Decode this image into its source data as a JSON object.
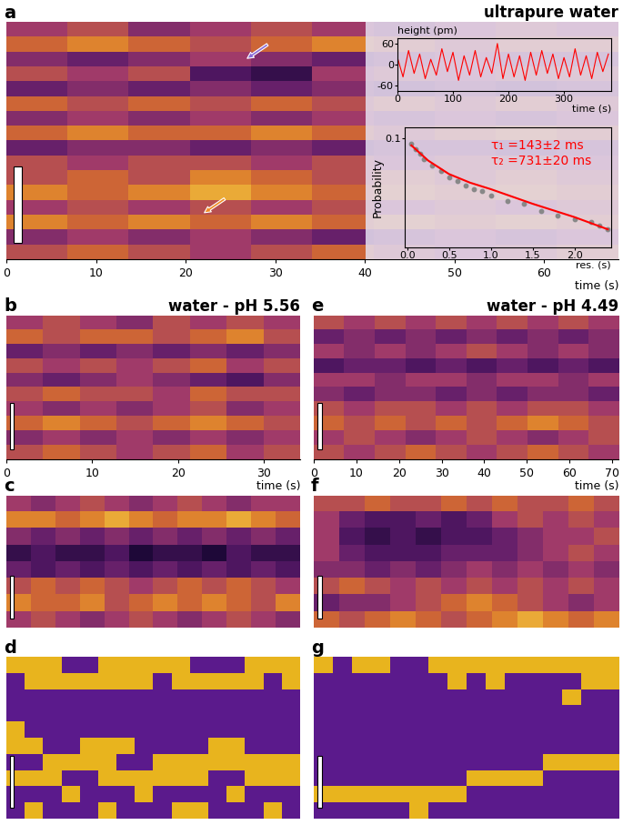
{
  "chart_data": [
    {
      "type": "heatmap",
      "panel": "a",
      "title": "ultrapure water",
      "x_label": "time (s)",
      "xlim": [
        0,
        68.3
      ],
      "xticks": [
        0,
        10,
        20,
        30,
        40,
        50,
        60
      ],
      "tick_labels": "x",
      "colors": [
        "#1e0838",
        "#5a1a6a",
        "#a03a6a",
        "#d8702a",
        "#f6d040"
      ],
      "color_range": [
        0,
        1
      ],
      "cells": [
        [
          0.5,
          0.6,
          0.4,
          0.5,
          0.6,
          0.5,
          0.4,
          0.5,
          0.6,
          0.5
        ],
        [
          0.7,
          0.8,
          0.7,
          0.6,
          0.7,
          0.8,
          0.7,
          0.6,
          0.7,
          0.7
        ],
        [
          0.4,
          0.3,
          0.4,
          0.5,
          0.4,
          0.3,
          0.4,
          0.5,
          0.4,
          0.4
        ],
        [
          0.6,
          0.5,
          0.6,
          0.2,
          0.1,
          0.5,
          0.6,
          0.5,
          0.6,
          0.6
        ],
        [
          0.3,
          0.4,
          0.3,
          0.4,
          0.3,
          0.4,
          0.3,
          0.4,
          0.3,
          0.4
        ],
        [
          0.7,
          0.6,
          0.7,
          0.6,
          0.7,
          0.6,
          0.7,
          0.6,
          0.7,
          0.6
        ],
        [
          0.4,
          0.5,
          0.4,
          0.5,
          0.4,
          0.5,
          0.4,
          0.5,
          0.4,
          0.5
        ],
        [
          0.7,
          0.8,
          0.7,
          0.7,
          0.8,
          0.7,
          0.6,
          0.7,
          0.8,
          0.7
        ],
        [
          0.3,
          0.4,
          0.4,
          0.3,
          0.4,
          0.3,
          0.4,
          0.4,
          0.3,
          0.4
        ],
        [
          0.6,
          0.5,
          0.6,
          0.6,
          0.5,
          0.6,
          0.5,
          0.6,
          0.6,
          0.5
        ],
        [
          0.6,
          0.7,
          0.6,
          0.8,
          0.7,
          0.6,
          0.7,
          0.6,
          0.7,
          0.6
        ],
        [
          0.8,
          0.7,
          0.8,
          0.9,
          0.8,
          0.7,
          0.8,
          0.7,
          0.8,
          0.7
        ],
        [
          0.5,
          0.6,
          0.5,
          0.6,
          0.5,
          0.6,
          0.5,
          0.6,
          0.5,
          0.6
        ],
        [
          0.8,
          0.7,
          0.8,
          0.7,
          0.8,
          0.7,
          0.8,
          0.7,
          0.8,
          0.7
        ],
        [
          0.4,
          0.5,
          0.4,
          0.5,
          0.4,
          0.3,
          0.4,
          0.5,
          0.4,
          0.5
        ],
        [
          0.6,
          0.7,
          0.6,
          0.5,
          0.6,
          0.7,
          0.6,
          0.5,
          0.6,
          0.7
        ]
      ],
      "insets": [
        {
          "type": "line",
          "y_label": "height (pm)",
          "x_label": "time (s)",
          "color": "#ff0000",
          "xlim": [
            0,
            385
          ],
          "xticks": [
            0,
            100,
            200,
            300
          ],
          "ylim": [
            -75,
            75
          ],
          "yticks": [
            -60,
            0,
            60
          ],
          "x": [
            0,
            10,
            20,
            30,
            40,
            50,
            60,
            70,
            80,
            90,
            100,
            110,
            120,
            130,
            140,
            150,
            160,
            170,
            180,
            190,
            200,
            210,
            220,
            230,
            240,
            250,
            260,
            270,
            280,
            290,
            300,
            310,
            320,
            330,
            340,
            350,
            360,
            370,
            380
          ],
          "values": [
            20,
            -35,
            40,
            -25,
            30,
            -40,
            15,
            -30,
            45,
            -20,
            35,
            -45,
            25,
            -30,
            40,
            -35,
            20,
            -25,
            60,
            -40,
            30,
            -35,
            25,
            -45,
            35,
            -30,
            40,
            -25,
            30,
            -40,
            20,
            -35,
            45,
            -30,
            25,
            -40,
            35,
            -20,
            30
          ]
        },
        {
          "type": "scatter",
          "y_label": "Probability",
          "x_label": "res. (s)",
          "log": "y",
          "color": "#888888",
          "xlim": [
            -0.03,
            2.44
          ],
          "xticks": [
            0.0,
            0.5,
            1.0,
            1.5,
            2.0
          ],
          "ylim": [
            0.0015,
            0.15
          ],
          "yticks": [
            0.1
          ],
          "x": [
            0.05,
            0.1,
            0.15,
            0.2,
            0.3,
            0.4,
            0.5,
            0.6,
            0.7,
            0.8,
            0.9,
            1.0,
            1.2,
            1.4,
            1.6,
            1.8,
            2.0,
            2.2,
            2.3,
            2.4
          ],
          "values": [
            0.08,
            0.065,
            0.055,
            0.045,
            0.035,
            0.028,
            0.022,
            0.019,
            0.016,
            0.014,
            0.013,
            0.011,
            0.009,
            0.008,
            0.006,
            0.005,
            0.0045,
            0.004,
            0.0035,
            0.003
          ],
          "fit": {
            "color": "#ff0000",
            "x": [
              0.05,
              0.25,
              0.5,
              0.75,
              1.0,
              1.5,
              2.0,
              2.4
            ],
            "values": [
              0.075,
              0.042,
              0.025,
              0.018,
              0.014,
              0.008,
              0.0048,
              0.003
            ]
          },
          "annotations": [
            "τ₁ =143±2 ms",
            "τ₂ =731±20 ms"
          ],
          "annotation_color": "#ff0000"
        }
      ]
    },
    {
      "type": "heatmap",
      "panel": "b",
      "title": "water - pH 5.56",
      "x_label": "time (s)",
      "xlim": [
        0,
        34.2
      ],
      "xticks": [
        0,
        10,
        20,
        30
      ],
      "tick_labels": "x",
      "colors": [
        "#1e0838",
        "#5a1a6a",
        "#a03a6a",
        "#d8702a",
        "#f6d040"
      ],
      "color_range": [
        0,
        1
      ],
      "cells": [
        [
          0.5,
          0.6,
          0.5,
          0.4,
          0.6,
          0.5,
          0.6,
          0.5
        ],
        [
          0.7,
          0.6,
          0.7,
          0.7,
          0.6,
          0.7,
          0.8,
          0.6
        ],
        [
          0.3,
          0.4,
          0.3,
          0.4,
          0.3,
          0.4,
          0.3,
          0.4
        ],
        [
          0.6,
          0.5,
          0.6,
          0.5,
          0.6,
          0.7,
          0.5,
          0.6
        ],
        [
          0.4,
          0.3,
          0.4,
          0.5,
          0.4,
          0.3,
          0.2,
          0.4
        ],
        [
          0.6,
          0.7,
          0.6,
          0.6,
          0.5,
          0.7,
          0.6,
          0.6
        ],
        [
          0.5,
          0.4,
          0.5,
          0.4,
          0.5,
          0.6,
          0.4,
          0.5
        ],
        [
          0.7,
          0.8,
          0.7,
          0.6,
          0.7,
          0.8,
          0.7,
          0.6
        ],
        [
          0.4,
          0.5,
          0.4,
          0.5,
          0.4,
          0.5,
          0.4,
          0.5
        ],
        [
          0.6,
          0.7,
          0.6,
          0.5,
          0.6,
          0.7,
          0.5,
          0.6
        ]
      ]
    },
    {
      "type": "heatmap",
      "panel": "c",
      "tick_labels": false,
      "colors": [
        "#1e0838",
        "#5a1a6a",
        "#a03a6a",
        "#d8702a",
        "#f6d040"
      ],
      "color_range": [
        0,
        1
      ],
      "cells": [
        [
          0.5,
          0.4,
          0.5,
          0.6,
          0.5,
          0.4,
          0.5,
          0.6,
          0.5,
          0.4,
          0.5,
          0.5
        ],
        [
          0.8,
          0.8,
          0.7,
          0.8,
          0.9,
          0.8,
          0.7,
          0.8,
          0.8,
          0.9,
          0.8,
          0.7
        ],
        [
          0.4,
          0.3,
          0.4,
          0.3,
          0.4,
          0.3,
          0.4,
          0.3,
          0.4,
          0.3,
          0.4,
          0.3
        ],
        [
          0.1,
          0.2,
          0.1,
          0.1,
          0.2,
          0.0,
          0.1,
          0.1,
          0.0,
          0.2,
          0.1,
          0.1
        ],
        [
          0.3,
          0.2,
          0.3,
          0.2,
          0.3,
          0.2,
          0.3,
          0.2,
          0.3,
          0.2,
          0.3,
          0.2
        ],
        [
          0.6,
          0.7,
          0.6,
          0.7,
          0.6,
          0.5,
          0.6,
          0.7,
          0.6,
          0.7,
          0.6,
          0.5
        ],
        [
          0.8,
          0.7,
          0.7,
          0.8,
          0.6,
          0.7,
          0.8,
          0.7,
          0.8,
          0.7,
          0.6,
          0.8
        ],
        [
          0.5,
          0.6,
          0.5,
          0.4,
          0.5,
          0.6,
          0.5,
          0.4,
          0.5,
          0.6,
          0.5,
          0.4
        ]
      ]
    },
    {
      "type": "heatmap",
      "panel": "d",
      "tick_labels": false,
      "colors": [
        "#5b1a8c",
        "#e8b41e"
      ],
      "color_range": [
        0,
        1
      ],
      "cells": [
        [
          1,
          1,
          1,
          0,
          0,
          1,
          1,
          1,
          1,
          1,
          0,
          0,
          0,
          1,
          1,
          1
        ],
        [
          0,
          1,
          1,
          1,
          1,
          1,
          1,
          1,
          0,
          1,
          1,
          1,
          1,
          1,
          0,
          1
        ],
        [
          0,
          0,
          0,
          0,
          0,
          0,
          0,
          0,
          0,
          0,
          0,
          0,
          0,
          0,
          0,
          0
        ],
        [
          0,
          0,
          0,
          0,
          0,
          0,
          0,
          0,
          0,
          0,
          0,
          0,
          0,
          0,
          0,
          0
        ],
        [
          1,
          0,
          0,
          0,
          0,
          0,
          0,
          0,
          0,
          0,
          0,
          0,
          0,
          0,
          0,
          0
        ],
        [
          1,
          1,
          0,
          0,
          1,
          1,
          1,
          0,
          0,
          0,
          0,
          1,
          1,
          0,
          0,
          0
        ],
        [
          0,
          0,
          1,
          1,
          1,
          1,
          0,
          0,
          1,
          1,
          1,
          1,
          1,
          1,
          1,
          1
        ],
        [
          1,
          1,
          1,
          0,
          0,
          1,
          1,
          1,
          1,
          1,
          1,
          0,
          0,
          1,
          1,
          1
        ],
        [
          0,
          0,
          0,
          1,
          0,
          0,
          0,
          1,
          0,
          0,
          0,
          0,
          1,
          0,
          0,
          0
        ],
        [
          0,
          1,
          0,
          0,
          0,
          1,
          0,
          0,
          0,
          1,
          1,
          0,
          0,
          0,
          1,
          0
        ]
      ]
    },
    {
      "type": "heatmap",
      "panel": "e",
      "title": "water - pH 4.49",
      "x_label": "time (s)",
      "xlim": [
        0,
        71.5
      ],
      "xticks": [
        0,
        10,
        20,
        30,
        40,
        50,
        60,
        70
      ],
      "tick_labels": "x",
      "colors": [
        "#1e0838",
        "#5a1a6a",
        "#a03a6a",
        "#d8702a",
        "#f6d040"
      ],
      "color_range": [
        0,
        1
      ],
      "cells": [
        [
          0.6,
          0.5,
          0.6,
          0.5,
          0.6,
          0.5,
          0.6,
          0.5,
          0.6,
          0.5
        ],
        [
          0.3,
          0.4,
          0.3,
          0.4,
          0.3,
          0.4,
          0.3,
          0.4,
          0.3,
          0.4
        ],
        [
          0.5,
          0.4,
          0.5,
          0.4,
          0.5,
          0.6,
          0.5,
          0.4,
          0.5,
          0.4
        ],
        [
          0.2,
          0.3,
          0.3,
          0.2,
          0.3,
          0.2,
          0.3,
          0.2,
          0.3,
          0.2
        ],
        [
          0.5,
          0.5,
          0.4,
          0.5,
          0.5,
          0.4,
          0.5,
          0.5,
          0.4,
          0.5
        ],
        [
          0.4,
          0.3,
          0.4,
          0.4,
          0.3,
          0.4,
          0.3,
          0.4,
          0.4,
          0.3
        ],
        [
          0.6,
          0.5,
          0.6,
          0.6,
          0.5,
          0.6,
          0.5,
          0.6,
          0.6,
          0.5
        ],
        [
          0.7,
          0.6,
          0.7,
          0.6,
          0.7,
          0.6,
          0.7,
          0.8,
          0.7,
          0.6
        ],
        [
          0.5,
          0.6,
          0.5,
          0.4,
          0.5,
          0.6,
          0.5,
          0.4,
          0.5,
          0.6
        ],
        [
          0.6,
          0.5,
          0.6,
          0.7,
          0.6,
          0.5,
          0.6,
          0.7,
          0.6,
          0.5
        ]
      ]
    },
    {
      "type": "heatmap",
      "panel": "f",
      "tick_labels": false,
      "colors": [
        "#1e0838",
        "#5a1a6a",
        "#a03a6a",
        "#d8702a",
        "#f6d040"
      ],
      "color_range": [
        0,
        1
      ],
      "cells": [
        [
          0.6,
          0.6,
          0.7,
          0.6,
          0.6,
          0.7,
          0.6,
          0.7,
          0.6,
          0.6,
          0.7,
          0.6
        ],
        [
          0.5,
          0.3,
          0.2,
          0.2,
          0.3,
          0.2,
          0.3,
          0.5,
          0.6,
          0.5,
          0.6,
          0.5
        ],
        [
          0.5,
          0.2,
          0.1,
          0.2,
          0.1,
          0.2,
          0.2,
          0.3,
          0.4,
          0.5,
          0.5,
          0.6
        ],
        [
          0.5,
          0.3,
          0.2,
          0.2,
          0.2,
          0.3,
          0.3,
          0.3,
          0.4,
          0.5,
          0.6,
          0.5
        ],
        [
          0.4,
          0.4,
          0.3,
          0.4,
          0.3,
          0.4,
          0.5,
          0.4,
          0.5,
          0.4,
          0.5,
          0.4
        ],
        [
          0.6,
          0.7,
          0.6,
          0.5,
          0.6,
          0.5,
          0.6,
          0.5,
          0.6,
          0.5,
          0.6,
          0.5
        ],
        [
          0.3,
          0.4,
          0.4,
          0.5,
          0.6,
          0.7,
          0.8,
          0.7,
          0.6,
          0.5,
          0.4,
          0.5
        ],
        [
          0.7,
          0.6,
          0.7,
          0.8,
          0.7,
          0.6,
          0.7,
          0.8,
          0.9,
          0.8,
          0.7,
          0.8
        ]
      ]
    },
    {
      "type": "heatmap",
      "panel": "g",
      "tick_labels": false,
      "colors": [
        "#5b1a8c",
        "#e8b41e"
      ],
      "color_range": [
        0,
        1
      ],
      "cells": [
        [
          1,
          0,
          1,
          1,
          0,
          0,
          1,
          1,
          1,
          1,
          1,
          1,
          1,
          1,
          1,
          1
        ],
        [
          0,
          0,
          0,
          0,
          0,
          0,
          0,
          1,
          0,
          1,
          0,
          0,
          0,
          0,
          1,
          1
        ],
        [
          0,
          0,
          0,
          0,
          0,
          0,
          0,
          0,
          0,
          0,
          0,
          0,
          0,
          1,
          0,
          0
        ],
        [
          0,
          0,
          0,
          0,
          0,
          0,
          0,
          0,
          0,
          0,
          0,
          0,
          0,
          0,
          0,
          0
        ],
        [
          0,
          0,
          0,
          0,
          0,
          0,
          0,
          0,
          0,
          0,
          0,
          0,
          0,
          0,
          0,
          0
        ],
        [
          0,
          0,
          0,
          0,
          0,
          0,
          0,
          0,
          0,
          0,
          0,
          0,
          0,
          0,
          0,
          0
        ],
        [
          0,
          0,
          0,
          0,
          0,
          0,
          0,
          0,
          0,
          0,
          0,
          0,
          1,
          1,
          1,
          1
        ],
        [
          0,
          0,
          0,
          0,
          0,
          0,
          0,
          0,
          1,
          1,
          1,
          1,
          0,
          0,
          0,
          0
        ],
        [
          1,
          1,
          1,
          1,
          1,
          1,
          1,
          1,
          0,
          0,
          0,
          0,
          0,
          0,
          0,
          0
        ],
        [
          0,
          0,
          0,
          0,
          0,
          1,
          0,
          0,
          0,
          0,
          0,
          0,
          0,
          0,
          0,
          0
        ]
      ]
    }
  ]
}
